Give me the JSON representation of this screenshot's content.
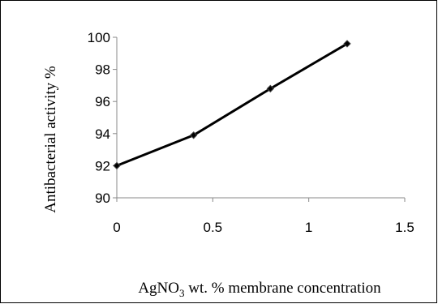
{
  "chart_data": {
    "type": "line",
    "x": [
      0,
      0.4,
      0.8,
      1.2
    ],
    "y": [
      92,
      93.9,
      96.8,
      99.6
    ],
    "xlabel": {
      "pre": "AgNO",
      "sub": "3",
      "post": " wt. %  membrane concentration"
    },
    "ylabel": "Antibacterial activity %",
    "xlim": [
      0,
      1.5
    ],
    "ylim": [
      90,
      100
    ],
    "x_ticks": [
      0,
      0.5,
      1,
      1.5
    ],
    "y_ticks": [
      90,
      92,
      94,
      96,
      98,
      100
    ],
    "x_tick_labels": [
      "0",
      "0.5",
      "1",
      "1.5"
    ],
    "y_tick_labels": [
      "90",
      "92",
      "94",
      "96",
      "98",
      "100"
    ],
    "grid": false,
    "line_color": "#000000",
    "marker": "diamond"
  }
}
